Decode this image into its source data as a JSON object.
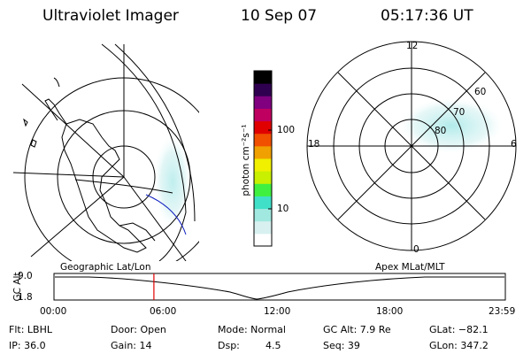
{
  "header": {
    "title": "Ultraviolet Imager",
    "date": "10 Sep 07",
    "time": "05:17:36 UT"
  },
  "geo_panel": {
    "label": "Geographic Lat/Lon"
  },
  "polar_panel": {
    "label": "Apex MLat/MLT",
    "mlt_labels": {
      "top": "12",
      "left": "18",
      "right": "6",
      "bottom": "0"
    },
    "lat_labels": [
      "60",
      "70",
      "80"
    ]
  },
  "colorbar": {
    "label": "photon cm⁻²s⁻¹",
    "ticks": [
      "100",
      "10"
    ],
    "colors": [
      "#ffffff",
      "#d8f0f0",
      "#a0e8e0",
      "#40e0c8",
      "#40f040",
      "#c8f000",
      "#f0f000",
      "#f0a000",
      "#f05000",
      "#e00000",
      "#c00060",
      "#800080",
      "#300050",
      "#000000"
    ]
  },
  "altitude_plot": {
    "ylabel": "GC Alt",
    "y_ticks": [
      "9.0",
      "1.8"
    ],
    "x_ticks": [
      "00:00",
      "06:00",
      "12:00",
      "18:00",
      "23:59"
    ],
    "marker_time": "05:17",
    "marker_color": "#e00000"
  },
  "info": {
    "filter": "Flt: LBHL",
    "door": "Door: Open",
    "mode": "Mode: Normal",
    "gc_alt": "GC Alt: 7.9 Re",
    "glat": "GLat: −82.1",
    "ip": "IP: 36.0",
    "gain": "Gain: 14",
    "dsp_label": "Dsp:",
    "dsp_value": "4.5",
    "seq": "Seq: 39",
    "glon": "GLon: 347.2"
  }
}
